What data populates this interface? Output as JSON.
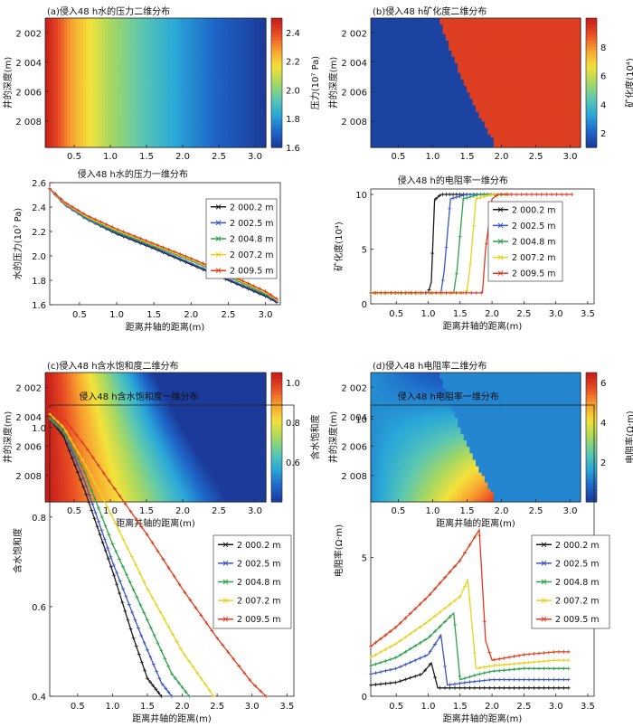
{
  "legend_entries": [
    "2 000.2 m",
    "2 002.5 m",
    "2 004.8 m",
    "2 007.2 m",
    "2 009.5 m"
  ],
  "series_colors": [
    "#1a1a1a",
    "#3b55c8",
    "#2da24a",
    "#e8d21c",
    "#e23a1c"
  ],
  "colormap": [
    "#1b3a9a",
    "#1e66c8",
    "#2aa8d8",
    "#5cc8b0",
    "#a8d860",
    "#f4e23a",
    "#f8a030",
    "#e84c24",
    "#c41a1a"
  ],
  "panels": {
    "a": {
      "title": "(a)侵入48 h水的压力二维分布",
      "ylabel": "井的深度(m)",
      "yticks": [
        "2 002",
        "2 004",
        "2 006",
        "2 008"
      ],
      "xticks": [
        "0.5",
        "1.0",
        "1.5",
        "2.0",
        "2.5",
        "3.0"
      ],
      "cbar_label": "压力(10⁷ Pa)",
      "cbar_ticks": [
        "2.4",
        "2.2",
        "2.0",
        "1.8",
        "1.6"
      ]
    },
    "b": {
      "title": "(b)侵入48 h矿化度二维分布",
      "ylabel": "井的深度(m)",
      "yticks": [
        "2 002",
        "2 004",
        "2 006",
        "2 008"
      ],
      "xticks": [
        "0.5",
        "1.0",
        "1.5",
        "2.0",
        "2.5",
        "3.0"
      ],
      "cbar_label": "矿化度(10⁴)",
      "cbar_ticks": [
        "8",
        "6",
        "4",
        "2"
      ]
    },
    "c": {
      "title": "(c)侵入48 h含水饱和度二维分布",
      "ylabel": "井的深度(m)",
      "yticks": [
        "2 002",
        "2 004",
        "2 006",
        "2 008"
      ],
      "xticks": [
        "0.5",
        "1.0",
        "1.5",
        "2.0",
        "2.5",
        "3.0"
      ],
      "xlabel": "距离井轴的距离(m)",
      "cbar_label": "含水饱和度",
      "cbar_ticks": [
        "1.0",
        "0.8",
        "0.6"
      ]
    },
    "d": {
      "title": "(d)侵入48 h电阻率二维分布",
      "ylabel": "井的深度(m)",
      "yticks": [
        "2 002",
        "2 004",
        "2 006",
        "2 008"
      ],
      "xticks": [
        "0.5",
        "1.0",
        "1.5",
        "2.0",
        "2.5",
        "3.0"
      ],
      "xlabel": "距离井轴的距离(m)",
      "cbar_label": "电阻率(Ω·m)",
      "cbar_ticks": [
        "6",
        "4",
        "2"
      ]
    },
    "a1": {
      "title": "侵入48 h水的压力一维分布",
      "ylabel": "水的压力(10⁷ Pa)",
      "xlabel": "距离井轴的距离(m)",
      "yticks": [
        "2.6",
        "2.4",
        "2.2",
        "2.0",
        "1.8",
        "1.6"
      ],
      "xticks": [
        "0.5",
        "1.0",
        "1.5",
        "2.0",
        "2.5",
        "3.0"
      ]
    },
    "b1": {
      "title": "侵入48 h的电阻率一维分布",
      "ylabel": "矿化度(10⁴)",
      "xlabel": "距离井轴的距离(m)",
      "yticks": [
        "10",
        "5",
        "0"
      ],
      "xticks": [
        "0.5",
        "1.0",
        "1.5",
        "2.0",
        "2.5",
        "3.0",
        "3.5"
      ]
    },
    "c1": {
      "title": "侵入48 h含水饱和度一维分布",
      "ylabel": "含水饱和度",
      "xlabel": "距离井轴的距离(m)",
      "yticks": [
        "1.0",
        "0.8",
        "0.6",
        "0.4"
      ],
      "xticks": [
        "0.5",
        "1.0",
        "1.5",
        "2.0",
        "2.5",
        "3.0",
        "3.5"
      ]
    },
    "d1": {
      "title": "侵入48 h电阻率一维分布",
      "ylabel": "电阻率(Ω·m)",
      "xlabel": "距离井轴的距离(m)",
      "yticks": [
        "10",
        "5",
        "0"
      ],
      "xticks": [
        "0.5",
        "1.0",
        "1.5",
        "2.0",
        "2.5",
        "3.0",
        "3.5"
      ]
    }
  },
  "chart_data": [
    {
      "type": "heatmap",
      "id": "a",
      "xlim": [
        0.1,
        3.15
      ],
      "ylim": [
        2001,
        2009.8
      ],
      "zlim": [
        1.6,
        2.5
      ],
      "field": "pressure vs radius",
      "x": [
        0.1,
        0.5,
        1.0,
        1.5,
        2.0,
        2.5,
        3.15
      ],
      "z": [
        2.5,
        2.25,
        2.05,
        1.92,
        1.8,
        1.7,
        1.6
      ]
    },
    {
      "type": "heatmap",
      "id": "b",
      "xlim": [
        0.1,
        3.15
      ],
      "ylim": [
        2001,
        2009.8
      ],
      "zlim": [
        1,
        10
      ],
      "low_value": 1.2,
      "high_value": 9.2,
      "front": {
        "depth": [
          2000.2,
          2002.5,
          2004.8,
          2007.2,
          2009.5
        ],
        "x": [
          1.05,
          1.2,
          1.4,
          1.62,
          1.9
        ]
      }
    },
    {
      "type": "heatmap",
      "id": "c",
      "xlim": [
        0.1,
        3.15
      ],
      "ylim": [
        2001,
        2009.8
      ],
      "zlim": [
        0.4,
        1.05
      ],
      "front": {
        "depth": [
          2000.2,
          2002.5,
          2004.8,
          2007.2,
          2009.5
        ],
        "x": [
          1.5,
          1.75,
          2.0,
          2.3,
          2.6
        ]
      }
    },
    {
      "type": "heatmap",
      "id": "d",
      "xlim": [
        0.1,
        3.15
      ],
      "ylim": [
        2001,
        2009.8
      ],
      "zlim": [
        0,
        6.5
      ],
      "front": {
        "depth": [
          2000.2,
          2002.5,
          2004.8,
          2007.2,
          2009.5
        ],
        "x": [
          1.05,
          1.2,
          1.4,
          1.62,
          1.9
        ]
      },
      "near_value": [
        0.5,
        6.0
      ],
      "far_value": 1.2
    },
    {
      "type": "line",
      "id": "a1",
      "xlim": [
        0.1,
        3.2
      ],
      "ylim": [
        1.6,
        2.6
      ],
      "series": [
        {
          "name": "2 000.2 m",
          "x": [
            0.1,
            0.3,
            0.6,
            1.0,
            1.5,
            2.0,
            2.5,
            3.0,
            3.15
          ],
          "y": [
            2.55,
            2.42,
            2.3,
            2.18,
            2.06,
            1.93,
            1.8,
            1.67,
            1.62
          ]
        },
        {
          "name": "2 002.5 m",
          "x": [
            0.1,
            0.3,
            0.6,
            1.0,
            1.5,
            2.0,
            2.5,
            3.0,
            3.15
          ],
          "y": [
            2.55,
            2.42,
            2.3,
            2.19,
            2.07,
            1.94,
            1.81,
            1.68,
            1.63
          ]
        },
        {
          "name": "2 004.8 m",
          "x": [
            0.1,
            0.3,
            0.6,
            1.0,
            1.5,
            2.0,
            2.5,
            3.0,
            3.15
          ],
          "y": [
            2.55,
            2.43,
            2.31,
            2.2,
            2.08,
            1.96,
            1.83,
            1.69,
            1.64
          ]
        },
        {
          "name": "2 007.2 m",
          "x": [
            0.1,
            0.3,
            0.6,
            1.0,
            1.5,
            2.0,
            2.5,
            3.0,
            3.15
          ],
          "y": [
            2.55,
            2.43,
            2.32,
            2.21,
            2.09,
            1.97,
            1.84,
            1.7,
            1.64
          ]
        },
        {
          "name": "2 009.5 m",
          "x": [
            0.1,
            0.3,
            0.6,
            1.0,
            1.5,
            2.0,
            2.5,
            3.0,
            3.15
          ],
          "y": [
            2.55,
            2.44,
            2.33,
            2.22,
            2.1,
            1.98,
            1.85,
            1.71,
            1.65
          ]
        }
      ]
    },
    {
      "type": "line",
      "id": "b1",
      "xlim": [
        0.1,
        3.6
      ],
      "ylim": [
        0,
        10.5
      ],
      "series": [
        {
          "name": "2 000.2 m",
          "x": [
            0.1,
            0.5,
            1.0,
            1.05,
            1.1,
            1.2,
            1.5,
            2.0,
            2.25
          ],
          "y": [
            1,
            1,
            1,
            2,
            9.5,
            10,
            10,
            10,
            10
          ]
        },
        {
          "name": "2 002.5 m",
          "x": [
            0.1,
            0.5,
            1.0,
            1.2,
            1.25,
            1.35,
            1.6,
            2.0,
            2.25
          ],
          "y": [
            1,
            1,
            1,
            1,
            3,
            9.6,
            10,
            10,
            10
          ]
        },
        {
          "name": "2 004.8 m",
          "x": [
            0.1,
            0.5,
            1.0,
            1.4,
            1.45,
            1.55,
            1.8,
            2.0,
            2.25
          ],
          "y": [
            1,
            1,
            1,
            1,
            3,
            9.6,
            10,
            10,
            10
          ]
        },
        {
          "name": "2 007.2 m",
          "x": [
            0.1,
            0.5,
            1.0,
            1.6,
            1.65,
            1.75,
            2.0,
            2.25
          ],
          "y": [
            1,
            1,
            1,
            1,
            3,
            9.6,
            10,
            10
          ]
        },
        {
          "name": "2 009.5 m",
          "x": [
            0.1,
            0.5,
            1.0,
            1.5,
            1.85,
            1.9,
            2.0,
            2.1,
            3.25
          ],
          "y": [
            1,
            1,
            1,
            1,
            1,
            5,
            9.6,
            10,
            10
          ]
        }
      ]
    },
    {
      "type": "line",
      "id": "c1",
      "xlim": [
        0.1,
        3.6
      ],
      "ylim": [
        0.4,
        1.05
      ],
      "series": [
        {
          "name": "2 000.2 m",
          "x": [
            0.1,
            0.3,
            0.6,
            1.0,
            1.3,
            1.5,
            1.7
          ],
          "y": [
            1.02,
            0.98,
            0.86,
            0.68,
            0.53,
            0.44,
            0.4
          ]
        },
        {
          "name": "2 002.5 m",
          "x": [
            0.1,
            0.3,
            0.6,
            1.0,
            1.4,
            1.7,
            1.85
          ],
          "y": [
            1.02,
            0.99,
            0.88,
            0.7,
            0.54,
            0.43,
            0.4
          ]
        },
        {
          "name": "2 004.8 m",
          "x": [
            0.1,
            0.3,
            0.6,
            1.0,
            1.5,
            1.85,
            2.1
          ],
          "y": [
            1.02,
            0.99,
            0.9,
            0.74,
            0.57,
            0.45,
            0.4
          ]
        },
        {
          "name": "2 007.2 m",
          "x": [
            0.1,
            0.3,
            0.6,
            1.0,
            1.5,
            2.0,
            2.45
          ],
          "y": [
            1.03,
            1.0,
            0.92,
            0.8,
            0.64,
            0.5,
            0.4
          ]
        },
        {
          "name": "2 009.5 m",
          "x": [
            0.1,
            0.3,
            0.6,
            1.0,
            1.5,
            2.0,
            2.5,
            3.0,
            3.2
          ],
          "y": [
            1.04,
            1.02,
            0.96,
            0.87,
            0.76,
            0.64,
            0.53,
            0.43,
            0.4
          ]
        }
      ]
    },
    {
      "type": "line",
      "id": "d1",
      "xlim": [
        0.1,
        3.6
      ],
      "ylim": [
        0,
        10.5
      ],
      "series": [
        {
          "name": "2 000.2 m",
          "x": [
            0.1,
            0.5,
            0.9,
            1.05,
            1.15,
            1.5,
            2.0,
            2.5,
            3.0,
            3.2
          ],
          "y": [
            0.4,
            0.5,
            0.8,
            1.2,
            0.3,
            0.3,
            0.3,
            0.3,
            0.3,
            0.3
          ]
        },
        {
          "name": "2 002.5 m",
          "x": [
            0.1,
            0.5,
            1.0,
            1.2,
            1.3,
            1.6,
            2.0,
            2.5,
            3.0,
            3.2
          ],
          "y": [
            0.8,
            1.0,
            1.5,
            2.2,
            0.4,
            0.5,
            0.6,
            0.6,
            0.6,
            0.6
          ]
        },
        {
          "name": "2 004.8 m",
          "x": [
            0.1,
            0.5,
            1.0,
            1.4,
            1.5,
            1.8,
            2.0,
            2.5,
            3.0,
            3.2
          ],
          "y": [
            1.1,
            1.4,
            2.1,
            3.0,
            0.6,
            0.8,
            0.9,
            1.0,
            1.0,
            1.0
          ]
        },
        {
          "name": "2 007.2 m",
          "x": [
            0.1,
            0.5,
            1.0,
            1.5,
            1.62,
            1.75,
            2.0,
            2.5,
            3.0,
            3.2
          ],
          "y": [
            1.4,
            1.9,
            2.7,
            3.6,
            4.2,
            1.0,
            1.1,
            1.2,
            1.3,
            1.3
          ]
        },
        {
          "name": "2 009.5 m",
          "x": [
            0.1,
            0.5,
            1.0,
            1.5,
            1.8,
            1.9,
            2.0,
            2.5,
            3.0,
            3.2
          ],
          "y": [
            1.8,
            2.5,
            3.6,
            4.9,
            6.0,
            2.0,
            1.3,
            1.5,
            1.6,
            1.6
          ]
        }
      ]
    }
  ]
}
